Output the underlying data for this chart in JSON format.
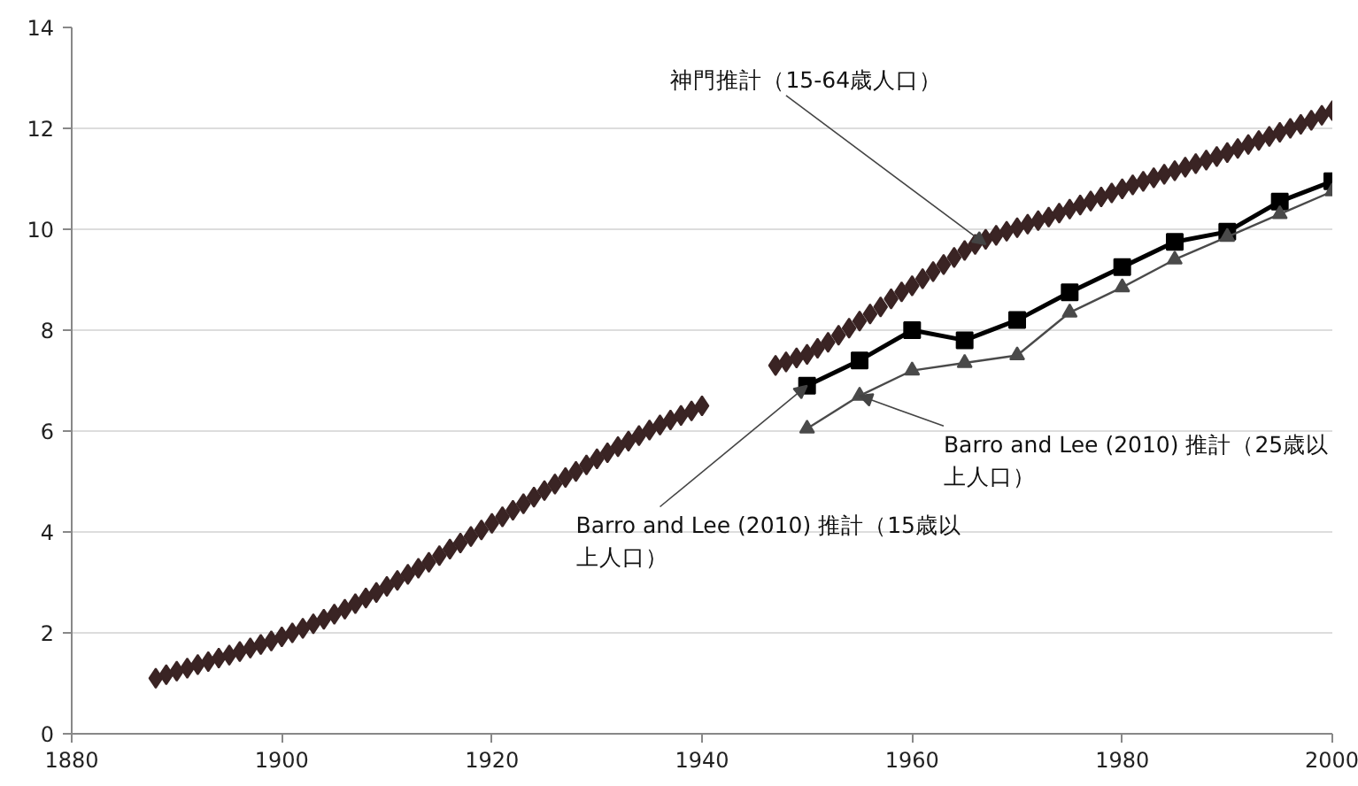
{
  "chart_data": {
    "type": "line",
    "xlim": [
      1880,
      2000
    ],
    "xticks": [
      1880,
      1900,
      1920,
      1940,
      1960,
      1980,
      2000
    ],
    "ylim": [
      0,
      14
    ],
    "yticks": [
      0,
      2,
      4,
      6,
      8,
      10,
      12,
      14
    ],
    "grid": "y",
    "series": [
      {
        "type": "scatter",
        "marker": "diamond",
        "color": "#3a2424",
        "x": [
          1888,
          1889,
          1890,
          1891,
          1892,
          1893,
          1894,
          1895,
          1896,
          1897,
          1898,
          1899,
          1900,
          1901,
          1902,
          1903,
          1904,
          1905,
          1906,
          1907,
          1908,
          1909,
          1910,
          1911,
          1912,
          1913,
          1914,
          1915,
          1916,
          1917,
          1918,
          1919,
          1920,
          1921,
          1922,
          1923,
          1924,
          1925,
          1926,
          1927,
          1928,
          1929,
          1930,
          1931,
          1932,
          1933,
          1934,
          1935,
          1936,
          1937,
          1938,
          1939,
          1940,
          1947,
          1948,
          1949,
          1950,
          1951,
          1952,
          1953,
          1954,
          1955,
          1956,
          1957,
          1958,
          1959,
          1960,
          1961,
          1962,
          1963,
          1964,
          1965,
          1966,
          1967,
          1968,
          1969,
          1970,
          1971,
          1972,
          1973,
          1974,
          1975,
          1976,
          1977,
          1978,
          1979,
          1980,
          1981,
          1982,
          1983,
          1984,
          1985,
          1986,
          1987,
          1988,
          1989,
          1990,
          1991,
          1992,
          1993,
          1994,
          1995,
          1996,
          1997,
          1998,
          1999,
          2000
        ],
        "values": [
          1.1,
          1.17,
          1.24,
          1.3,
          1.37,
          1.43,
          1.5,
          1.56,
          1.63,
          1.7,
          1.77,
          1.84,
          1.92,
          2.0,
          2.09,
          2.18,
          2.27,
          2.37,
          2.47,
          2.58,
          2.69,
          2.8,
          2.92,
          3.04,
          3.16,
          3.28,
          3.4,
          3.53,
          3.66,
          3.78,
          3.91,
          4.04,
          4.17,
          4.3,
          4.43,
          4.56,
          4.69,
          4.82,
          4.95,
          5.08,
          5.2,
          5.33,
          5.45,
          5.57,
          5.69,
          5.8,
          5.91,
          6.02,
          6.12,
          6.22,
          6.31,
          6.4,
          6.5,
          7.3,
          7.37,
          7.45,
          7.52,
          7.64,
          7.76,
          7.9,
          8.04,
          8.18,
          8.32,
          8.46,
          8.62,
          8.76,
          8.88,
          9.02,
          9.16,
          9.3,
          9.44,
          9.58,
          9.7,
          9.8,
          9.88,
          9.96,
          10.03,
          10.1,
          10.17,
          10.24,
          10.32,
          10.4,
          10.48,
          10.56,
          10.64,
          10.72,
          10.8,
          10.88,
          10.95,
          11.02,
          11.09,
          11.16,
          11.23,
          11.3,
          11.37,
          11.44,
          11.52,
          11.6,
          11.68,
          11.76,
          11.84,
          11.92,
          12.0,
          12.08,
          12.16,
          12.26,
          12.35
        ]
      },
      {
        "marker": "square",
        "color": "#000000",
        "x": [
          1950,
          1955,
          1960,
          1965,
          1970,
          1975,
          1980,
          1985,
          1990,
          1995,
          2000
        ],
        "values": [
          6.9,
          7.4,
          8.0,
          7.8,
          8.2,
          8.75,
          9.25,
          9.75,
          9.95,
          10.55,
          10.95
        ]
      },
      {
        "type": "line",
        "marker": "triangle",
        "color": "#4a4a4a",
        "x": [
          1950,
          1955,
          1960,
          1965,
          1970,
          1975,
          1980,
          1985,
          1990,
          1995,
          2000
        ],
        "values": [
          6.05,
          6.7,
          7.2,
          7.35,
          7.5,
          8.35,
          8.85,
          9.4,
          9.85,
          10.3,
          10.75
        ]
      }
    ],
    "annotations": [
      {
        "text": "神門推計（15-64歳人口）",
        "x": 1967,
        "y": 9.7
      },
      {
        "text": "Barro and Lee (2010) 推計（15歳以上人口）",
        "x": 1950,
        "y": 6.9
      },
      {
        "text": "Barro and Lee (2010) 推計（25歳以上人口）",
        "x": 1955,
        "y": 6.7
      }
    ]
  }
}
